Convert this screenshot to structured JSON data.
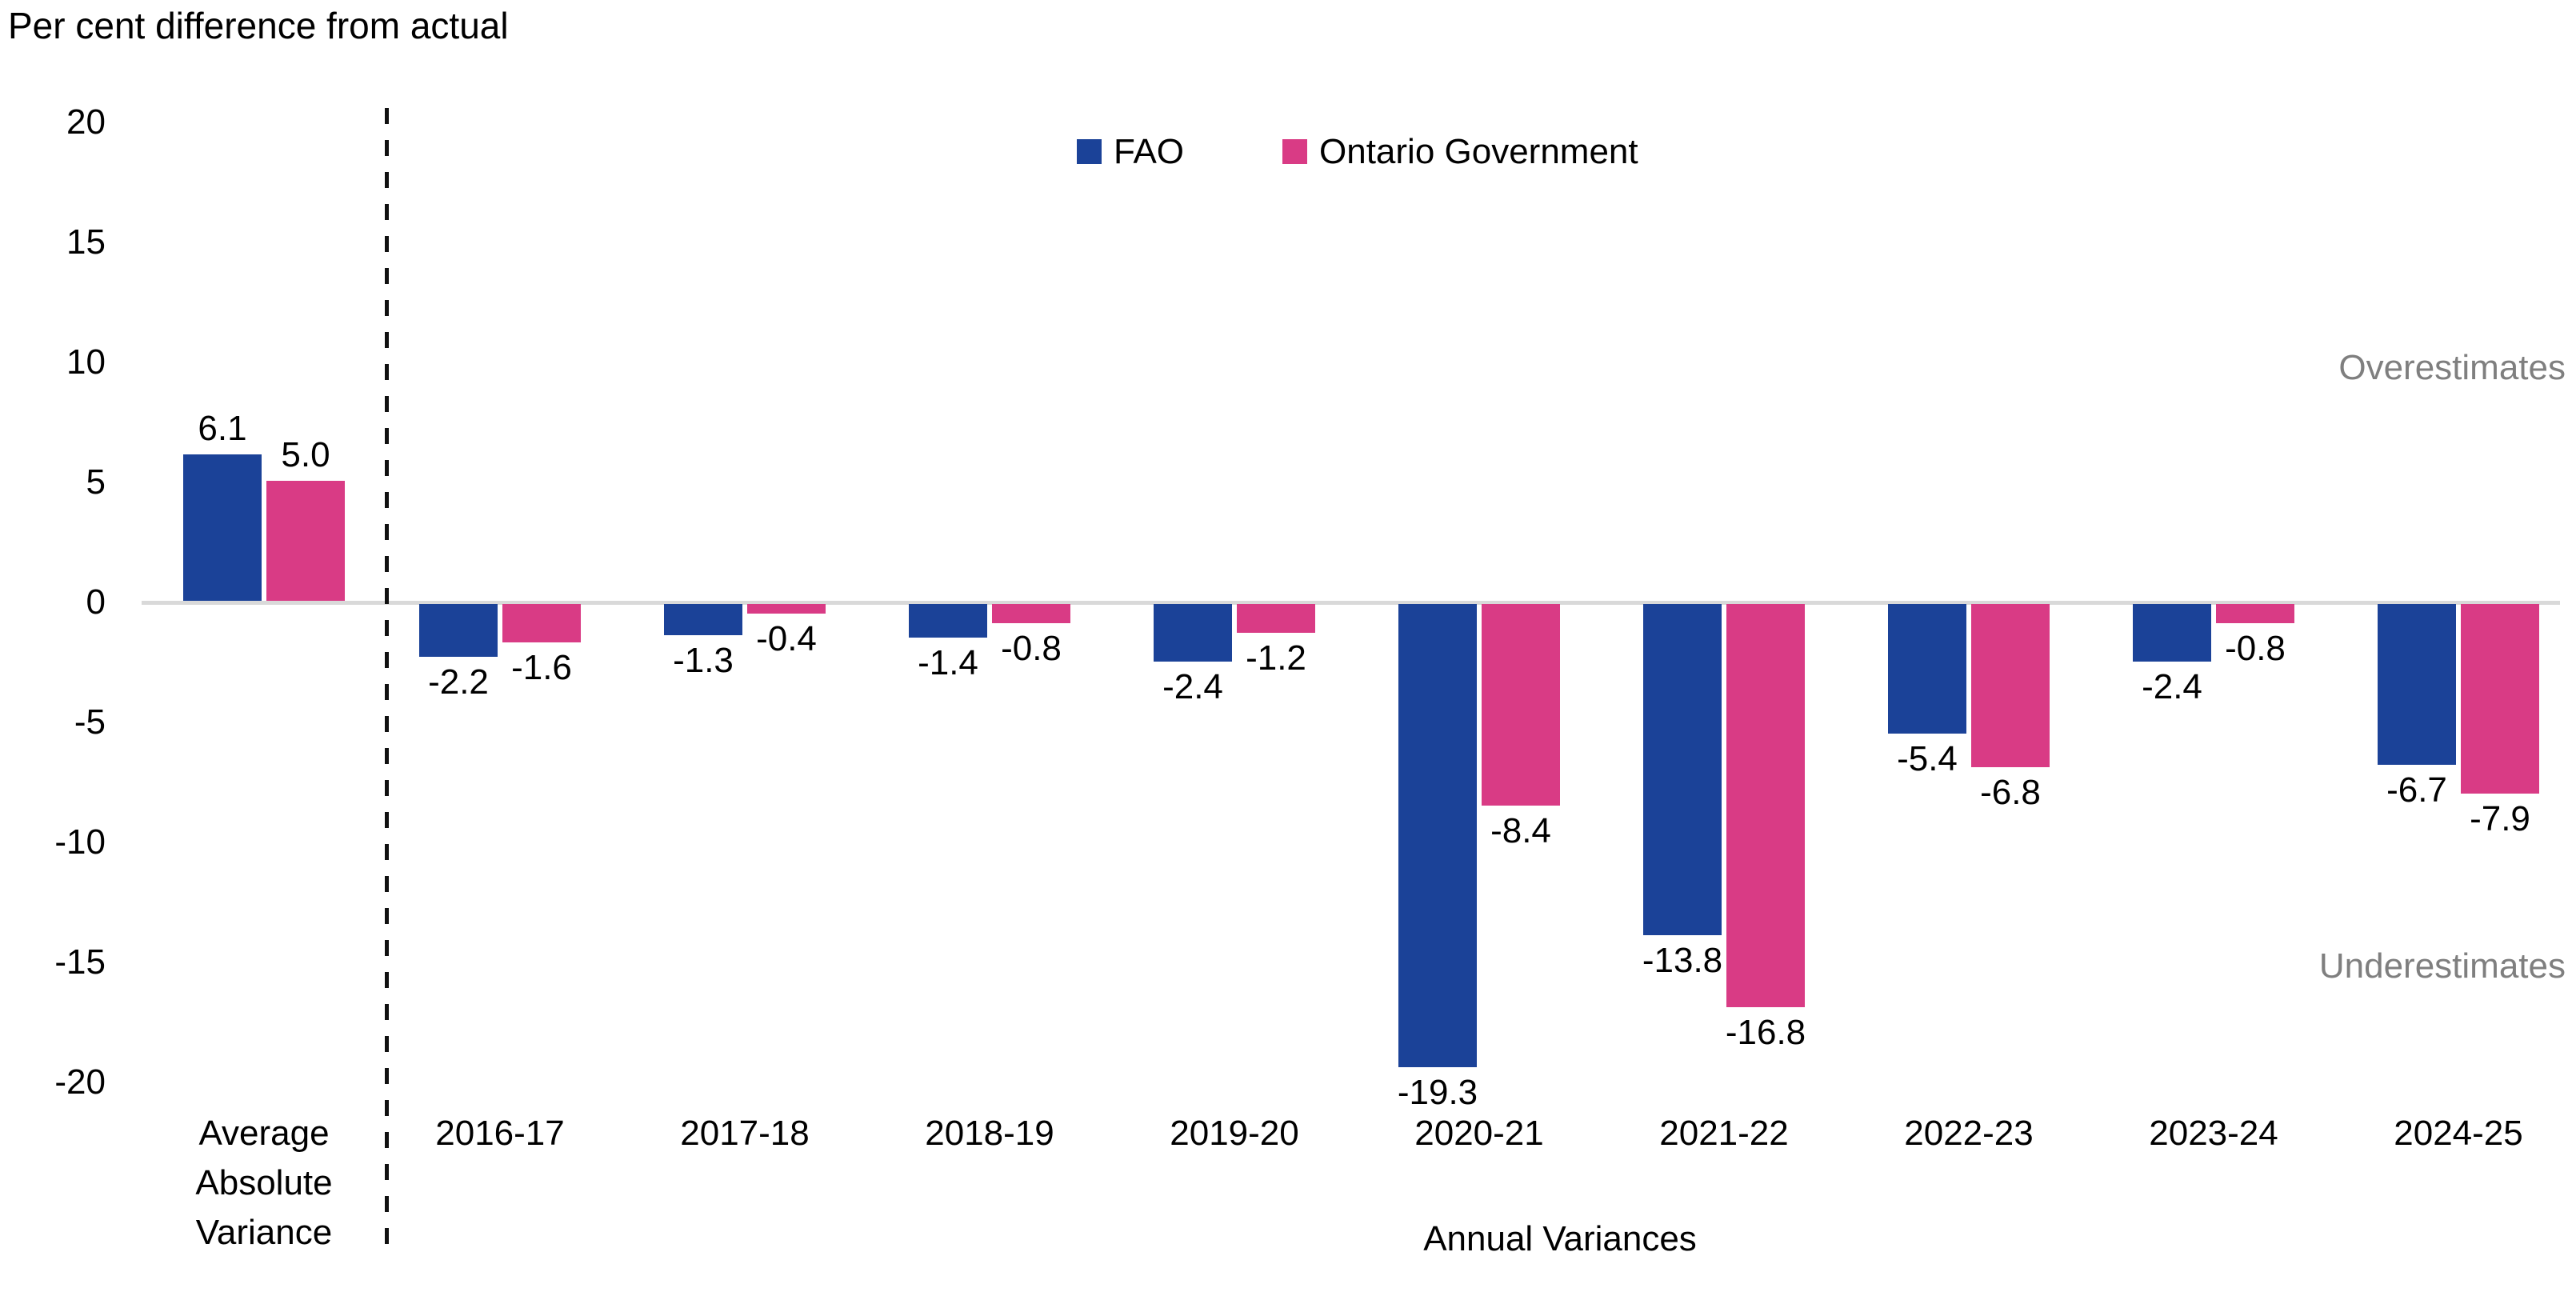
{
  "title": "Per cent difference from actual",
  "legend": [
    {
      "label": "FAO",
      "color": "#1b4298"
    },
    {
      "label": "Ontario Government",
      "color": "#d93b85"
    }
  ],
  "annotations": {
    "over": "Overestimates",
    "under": "Underestimates"
  },
  "x_axis_label": "Annual Variances",
  "colors": {
    "fao_blue": "#1b4298",
    "government_pink": "#d93b85",
    "zero_line_gray": "#d9d9d9",
    "annotation_gray": "#7f7f7f"
  },
  "chart_data": {
    "type": "bar",
    "categories": [
      "Average Absolute Variance",
      "2016-17",
      "2017-18",
      "2018-19",
      "2019-20",
      "2020-21",
      "2021-22",
      "2022-23",
      "2023-24",
      "2024-25"
    ],
    "first_category_lines": [
      "Average",
      "Absolute",
      "Variance"
    ],
    "series": [
      {
        "name": "FAO",
        "color": "#1b4298",
        "values": [
          6.1,
          -2.2,
          -1.3,
          -1.4,
          -2.4,
          -19.3,
          -13.8,
          -5.4,
          -2.4,
          -6.7
        ]
      },
      {
        "name": "Ontario Government",
        "color": "#d93b85",
        "values": [
          5.0,
          -1.6,
          -0.4,
          -0.8,
          -1.2,
          -8.4,
          -16.8,
          -6.8,
          -0.8,
          -7.9
        ]
      }
    ],
    "title": "Per cent difference from actual",
    "xlabel": "Annual Variances",
    "ylabel": "",
    "ylim": [
      -20,
      20
    ],
    "yticks": [
      20,
      15,
      10,
      5,
      0,
      -5,
      -10,
      -15,
      -20
    ],
    "grid": "zero-line-only",
    "legend_position": "top-center",
    "separator_note": "dashed vertical line between Average Absolute Variance group and annual groups",
    "data_labels": "one decimal, above positive bars and below negative bars"
  }
}
